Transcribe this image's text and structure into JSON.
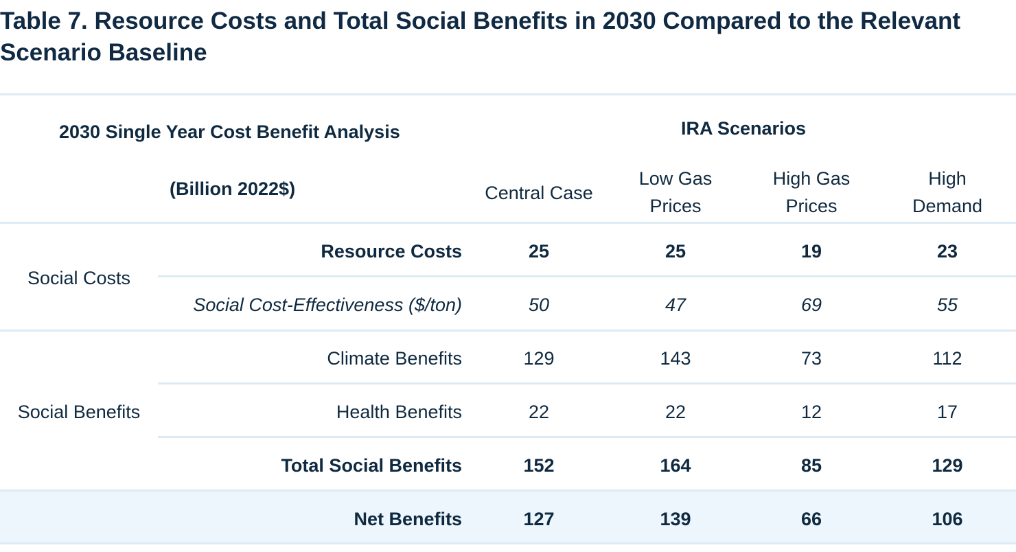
{
  "title": "Table 7.  Resource Costs and Total Social Benefits in 2030 Compared to the Relevant Scenario Baseline",
  "header": {
    "analysis_title": "2030 Single Year Cost Benefit Analysis",
    "units": "(Billion 2022$)",
    "scenarios_group": "IRA Scenarios",
    "columns": [
      {
        "line1": "Central Case",
        "line2": ""
      },
      {
        "line1": "Low Gas",
        "line2": "Prices"
      },
      {
        "line1": "High Gas",
        "line2": "Prices"
      },
      {
        "line1": "High",
        "line2": "Demand"
      }
    ]
  },
  "groups": {
    "social_costs": "Social Costs",
    "social_benefits": "Social Benefits"
  },
  "rows": [
    {
      "label": "Resource Costs",
      "values": [
        "25",
        "25",
        "19",
        "23"
      ]
    },
    {
      "label": "Social Cost-Effectiveness ($/ton)",
      "values": [
        "50",
        "47",
        "69",
        "55"
      ]
    },
    {
      "label": "Climate Benefits",
      "values": [
        "129",
        "143",
        "73",
        "112"
      ]
    },
    {
      "label": "Health Benefits",
      "values": [
        "22",
        "22",
        "12",
        "17"
      ]
    },
    {
      "label": "Total Social Benefits",
      "values": [
        "152",
        "164",
        "85",
        "129"
      ]
    },
    {
      "label": "Net Benefits",
      "values": [
        "127",
        "139",
        "66",
        "106"
      ]
    }
  ]
}
